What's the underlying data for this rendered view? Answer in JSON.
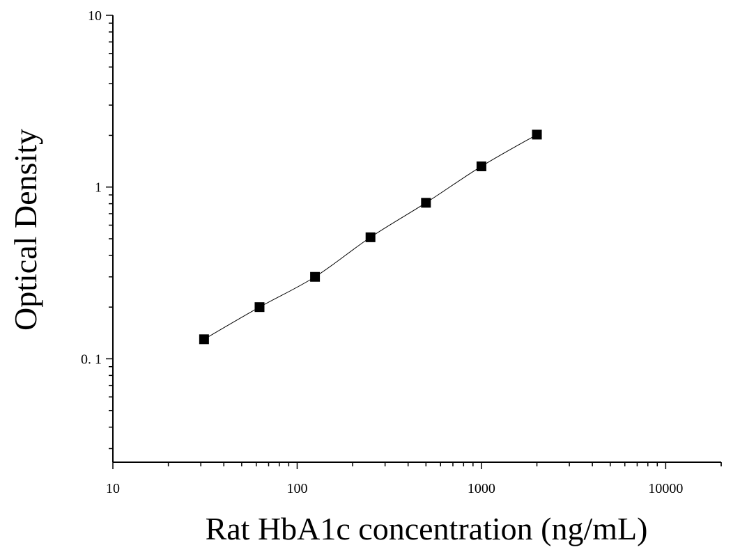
{
  "chart_data": {
    "type": "scatter",
    "xlabel": "Rat HbA1c concentration (ng/mL)",
    "ylabel": "Optical Density",
    "x_scale": "log",
    "y_scale": "log",
    "xlim": [
      10,
      20000
    ],
    "ylim": [
      0.025,
      10
    ],
    "x_ticks": [
      {
        "value": 10,
        "label": "10"
      },
      {
        "value": 100,
        "label": "100"
      },
      {
        "value": 1000,
        "label": "1000"
      },
      {
        "value": 10000,
        "label": "10000"
      }
    ],
    "y_ticks": [
      {
        "value": 0.1,
        "label": "0. 1"
      },
      {
        "value": 1,
        "label": "1"
      },
      {
        "value": 10,
        "label": "10"
      }
    ],
    "grid": false,
    "series": [
      {
        "marker": "square",
        "color": "#000000",
        "fit_line": true,
        "x": [
          31.25,
          62.5,
          125,
          250,
          500,
          1000,
          2000
        ],
        "y": [
          0.13,
          0.2,
          0.3,
          0.51,
          0.81,
          1.32,
          2.02
        ]
      }
    ]
  }
}
